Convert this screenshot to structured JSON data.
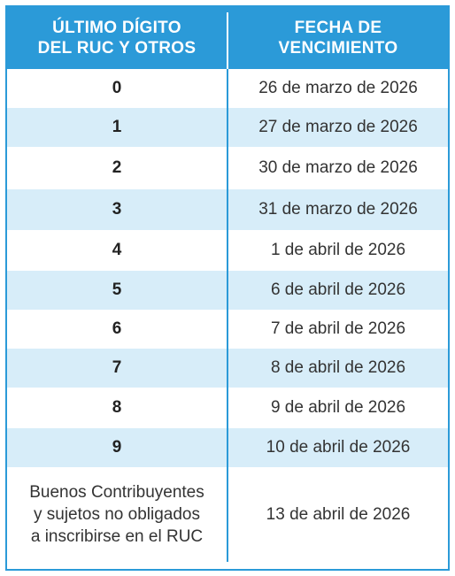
{
  "colors": {
    "accent": "#2b9ad8",
    "stripe": "#d7edf9"
  },
  "header": {
    "col1": "ÚLTIMO DÍGITO\nDEL RUC Y OTROS",
    "col2": "FECHA DE\nVENCIMIENTO"
  },
  "rows": [
    {
      "digit": "0",
      "date": "26 de marzo de 2026"
    },
    {
      "digit": "1",
      "date": "27 de marzo de 2026"
    },
    {
      "digit": "2",
      "date": "30 de marzo de 2026"
    },
    {
      "digit": "3",
      "date": "31 de marzo de 2026"
    },
    {
      "digit": "4",
      "date": "1 de abril de 2026"
    },
    {
      "digit": "5",
      "date": "6 de abril de 2026"
    },
    {
      "digit": "6",
      "date": "7 de abril de 2026"
    },
    {
      "digit": "7",
      "date": "8 de abril de 2026"
    },
    {
      "digit": "8",
      "date": "9 de abril de 2026"
    },
    {
      "digit": "9",
      "date": "10 de abril de 2026"
    }
  ],
  "last_row": {
    "label": "Buenos Contribuyentes\ny sujetos no obligados\na inscribirse en el RUC",
    "date": "13 de abril de 2026"
  }
}
